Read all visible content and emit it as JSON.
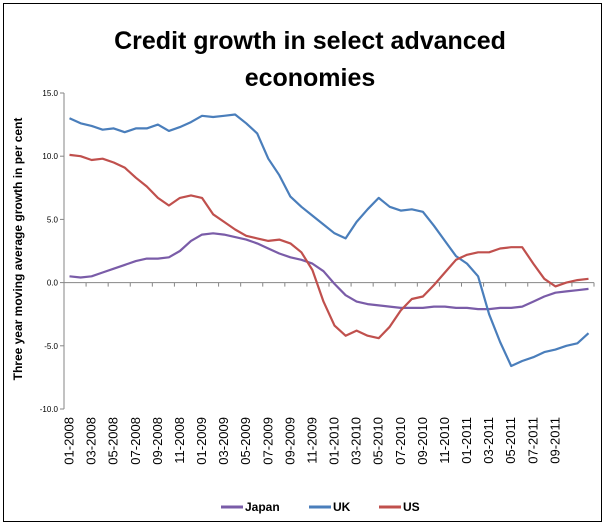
{
  "chart_data": {
    "type": "line",
    "title_lines": [
      "Credit growth in select advanced",
      "economies"
    ],
    "xlabel": "",
    "ylabel": "Three year moving  average growth in  per cent",
    "ylim": [
      -10,
      15
    ],
    "yticks": [
      "15.0",
      "10.0",
      "5.0",
      "0.0",
      "-5.0",
      "-10.0"
    ],
    "ytick_values": [
      15,
      10,
      5,
      0,
      -5,
      -10
    ],
    "x_tick_labels": [
      "01-2008",
      "03-2008",
      "05-2008",
      "07-2008",
      "09-2008",
      "11-2008",
      "01-2009",
      "03-2009",
      "05-2009",
      "07-2009",
      "09-2009",
      "11-2009",
      "01-2010",
      "03-2010",
      "05-2010",
      "07-2010",
      "09-2010",
      "11-2010",
      "01-2011",
      "03-2011",
      "05-2011",
      "07-2011",
      "09-2011"
    ],
    "grid": false,
    "legend_position": "bottom",
    "series": [
      {
        "name": "Japan",
        "color": "#7a5ca8",
        "values": [
          0.5,
          0.4,
          0.5,
          0.8,
          1.1,
          1.4,
          1.7,
          1.9,
          1.9,
          2.0,
          2.5,
          3.3,
          3.8,
          3.9,
          3.8,
          3.6,
          3.4,
          3.1,
          2.7,
          2.3,
          2.0,
          1.8,
          1.5,
          0.9,
          -0.1,
          -1.0,
          -1.5,
          -1.7,
          -1.8,
          -1.9,
          -2.0,
          -2.0,
          -2.0,
          -1.9,
          -1.9,
          -2.0,
          -2.0,
          -2.1,
          -2.1,
          -2.0,
          -2.0,
          -1.9,
          -1.5,
          -1.1,
          -0.8,
          -0.7,
          -0.6,
          -0.5
        ]
      },
      {
        "name": "UK",
        "color": "#4a7ebb",
        "values": [
          13.0,
          12.6,
          12.4,
          12.1,
          12.2,
          11.9,
          12.2,
          12.2,
          12.5,
          12.0,
          12.3,
          12.7,
          13.2,
          13.1,
          13.2,
          13.3,
          12.6,
          11.8,
          9.8,
          8.5,
          6.8,
          6.0,
          5.3,
          4.6,
          3.9,
          3.5,
          4.8,
          5.8,
          6.7,
          6.0,
          5.7,
          5.8,
          5.6,
          4.5,
          3.3,
          2.1,
          1.5,
          0.5,
          -2.5,
          -4.7,
          -6.6,
          -6.2,
          -5.9,
          -5.5,
          -5.3,
          -5.0,
          -4.8,
          -4.0
        ]
      },
      {
        "name": "US",
        "color": "#c0504d",
        "values": [
          10.1,
          10.0,
          9.7,
          9.8,
          9.5,
          9.1,
          8.3,
          7.6,
          6.7,
          6.1,
          6.7,
          6.9,
          6.7,
          5.4,
          4.8,
          4.2,
          3.7,
          3.5,
          3.3,
          3.4,
          3.1,
          2.4,
          1.0,
          -1.5,
          -3.4,
          -4.2,
          -3.8,
          -4.2,
          -4.4,
          -3.5,
          -2.2,
          -1.3,
          -1.1,
          -0.2,
          0.8,
          1.8,
          2.2,
          2.4,
          2.4,
          2.7,
          2.8,
          2.8,
          1.5,
          0.3,
          -0.3,
          0.0,
          0.2,
          0.3
        ]
      }
    ]
  }
}
